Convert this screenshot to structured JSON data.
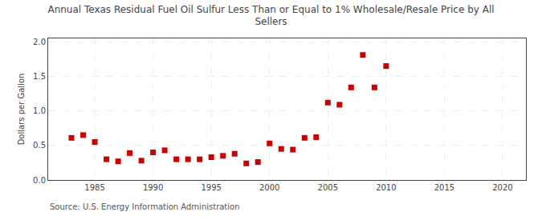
{
  "chart_data": {
    "type": "scatter",
    "title": "Annual Texas Residual Fuel Oil Sulfur Less Than or Equal to 1% Wholesale/Resale Price by All\nSellers",
    "ylabel": "Dollars per Gallon",
    "annotations": [
      "Source: U.S. Energy Information Administration"
    ],
    "color": "#cc0000",
    "marker": "square",
    "grid": true,
    "xlim": [
      1981,
      2022
    ],
    "ylim": [
      0.0,
      2.05
    ],
    "xticks": [
      1985,
      1990,
      1995,
      2000,
      2005,
      2010,
      2015,
      2020
    ],
    "yticks": [
      {
        "value": 0.0,
        "label": "0.0"
      },
      0.5,
      {
        "value": 1.0,
        "label": "1.0"
      },
      1.5,
      {
        "value": 2.0,
        "label": "2.0"
      }
    ],
    "x": [
      1983,
      1984,
      1985,
      1986,
      1987,
      1988,
      1989,
      1990,
      1991,
      1992,
      1993,
      1994,
      1995,
      1996,
      1997,
      1998,
      1999,
      2000,
      2001,
      2002,
      2003,
      2004,
      2005,
      2006,
      2007,
      2008,
      2009,
      2010
    ],
    "values": [
      0.61,
      0.65,
      0.55,
      0.3,
      0.27,
      0.39,
      0.28,
      0.4,
      0.43,
      0.3,
      0.3,
      0.3,
      0.33,
      0.35,
      0.38,
      0.24,
      0.26,
      0.53,
      0.45,
      0.44,
      0.61,
      0.62,
      1.12,
      1.09,
      1.34,
      1.81,
      1.34,
      1.65
    ]
  }
}
